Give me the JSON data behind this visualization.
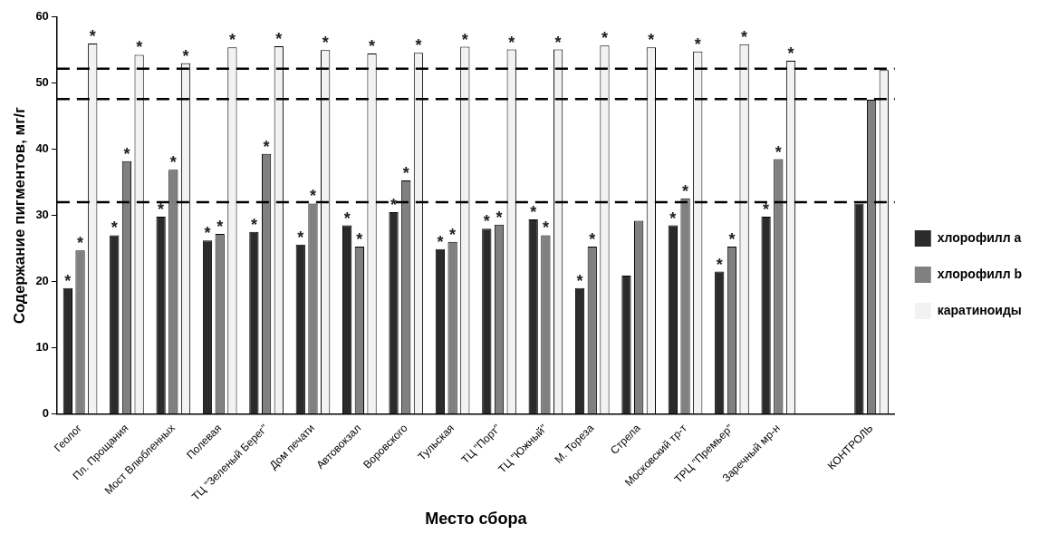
{
  "chart_data": {
    "type": "bar",
    "xlabel": "Место сбора",
    "ylabel": "Содержание пигментов, мг/г",
    "categories": [
      "Геолог",
      "Пл. Прощания",
      "Мост Влюбленных",
      "Полевая",
      "ТЦ \"Зеленый Берег\"",
      "Дом печати",
      "Автовокзал",
      "Воровского",
      "Тульская",
      "ТЦ \"Порт\"",
      "ТЦ \"Южный\"",
      "М. Тореза",
      "Стрела",
      "Московский тр-т",
      "ТРЦ \"Премьер\"",
      "Заречный мр-н",
      null,
      "КОНТРОЛЬ"
    ],
    "series": [
      {
        "name": "хлорофилл a",
        "color": "#2b2b2b",
        "values": [
          19,
          27,
          29.8,
          26.2,
          27.5,
          25.6,
          28.5,
          30.5,
          24.9,
          28,
          29.4,
          19,
          20.9,
          28.5,
          21.5,
          29.8,
          null,
          31.8
        ],
        "value_labels": [
          "*",
          "*",
          "*",
          "*",
          "*",
          "*",
          "*",
          "*",
          "*",
          "*",
          "*",
          "*",
          null,
          "*",
          "*",
          "*",
          null,
          null
        ]
      },
      {
        "name": "хлорофилл b",
        "color": "#808080",
        "values": [
          24.7,
          38.2,
          36.9,
          27.2,
          39.3,
          31.8,
          25.3,
          35.3,
          26,
          28.6,
          27,
          25.3,
          29.2,
          32.6,
          25.3,
          38.5,
          null,
          47.5
        ],
        "value_labels": [
          "*",
          "*",
          "*",
          "*",
          "*",
          "*",
          "*",
          "*",
          "*",
          "*",
          "*",
          "*",
          null,
          "*",
          "*",
          "*",
          null,
          null
        ]
      },
      {
        "name": "каратиноиды",
        "color": "#f2f2f2",
        "values": [
          56,
          54.3,
          53,
          55.4,
          55.6,
          55,
          54.5,
          54.6,
          55.5,
          55.1,
          55.1,
          55.7,
          55.4,
          54.8,
          55.9,
          53.4,
          null,
          52
        ],
        "value_labels": [
          "*",
          "*",
          "*",
          "*",
          "*",
          "*",
          "*",
          "*",
          "*",
          "*",
          "*",
          "*",
          "*",
          "*",
          "*",
          "*",
          null,
          null
        ]
      }
    ],
    "ylim": [
      0,
      60
    ],
    "yticks": [
      0,
      10,
      20,
      30,
      40,
      50,
      60
    ],
    "ref_lines": [
      {
        "axis": "y",
        "value": 52.2,
        "color": "#000000",
        "line_style": "dashed"
      },
      {
        "axis": "y",
        "value": 47.6,
        "color": "#000000",
        "line_style": "dashed"
      },
      {
        "axis": "y",
        "value": 32,
        "color": "#000000",
        "line_style": "dashed"
      }
    ],
    "legend": "right"
  }
}
